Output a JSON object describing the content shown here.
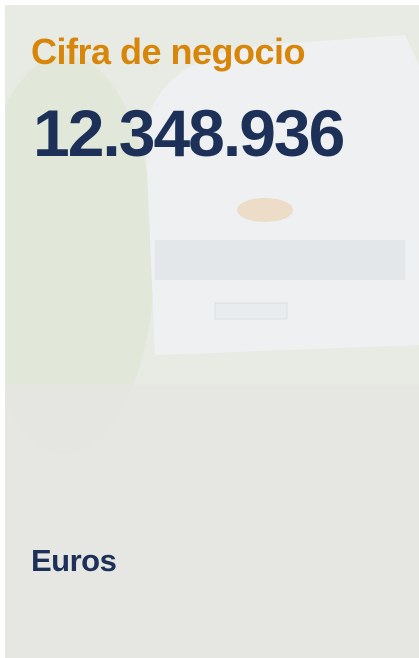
{
  "title": "Cifra de negocio",
  "value": "12.348.936",
  "unit": "Euros"
}
